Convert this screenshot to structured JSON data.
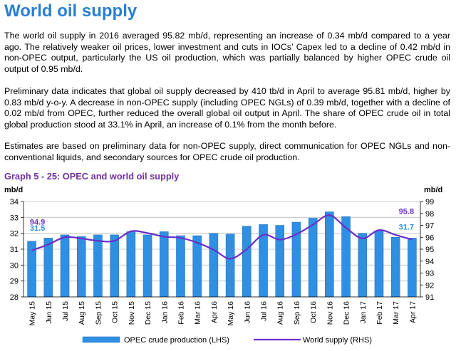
{
  "title": "World oil supply",
  "paragraphs": [
    "The world oil supply in 2016 averaged 95.82 mb/d, representing an increase of 0.34 mb/d compared to a year ago. The relatively weaker oil prices, lower investment and cuts in IOCs’ Capex led to a decline of 0.42 mb/d in non-OPEC output, particularly the US oil production, which was partially balanced by higher OPEC crude oil output of 0.95 mb/d.",
    "Preliminary data indicates that global oil supply decreased by 410 tb/d in April to average 95.81 mb/d, higher by 0.83 mb/d y-o-y. A decrease in non-OPEC supply (including OPEC NGLs) of 0.39 mb/d, together with a decline of 0.02 mb/d from OPEC, further reduced the overall global oil output in April. The share of OPEC crude oil in total global production stood at 33.1% in April, an increase of 0.1% from the month before.",
    "Estimates are based on preliminary data for non-OPEC supply, direct communication for OPEC NGLs and non-conventional liquids, and secondary sources for OPEC crude oil production."
  ],
  "chart_data": {
    "type": "bar",
    "title": "Graph 5 - 25: OPEC and world oil supply",
    "ylabel_left": "mb/d",
    "ylabel_right": "mb/d",
    "categories": [
      "May 15",
      "Jun 15",
      "Jul 15",
      "Aug 15",
      "Sep 15",
      "Oct 15",
      "Nov 15",
      "Dec 15",
      "Jan 16",
      "Feb 16",
      "Mar 16",
      "Apr 16",
      "May 16",
      "Jun 16",
      "Jul 16",
      "Aug 16",
      "Sep 16",
      "Oct 16",
      "Nov 16",
      "Dec 16",
      "Jan 17",
      "Feb 17",
      "Mar 17",
      "Apr 17"
    ],
    "ylim_left": [
      28,
      34
    ],
    "yticks_left": [
      28,
      29,
      30,
      31,
      32,
      33,
      34
    ],
    "ylim_right": [
      91,
      99
    ],
    "yticks_right": [
      91,
      92,
      93,
      94,
      95,
      96,
      97,
      98,
      99
    ],
    "series": [
      {
        "name": "OPEC crude production (LHS)",
        "axis": "left",
        "kind": "bar",
        "color": "#2f8fe3",
        "values": [
          31.5,
          31.7,
          31.9,
          31.8,
          31.9,
          31.9,
          32.1,
          31.9,
          32.1,
          31.85,
          31.85,
          32.0,
          31.95,
          32.45,
          32.55,
          32.5,
          32.7,
          32.95,
          33.35,
          33.05,
          32.0,
          32.15,
          31.75,
          31.7
        ]
      },
      {
        "name": "World supply (RHS)",
        "axis": "right",
        "kind": "line",
        "color": "#6a2fc8",
        "values": [
          94.9,
          95.4,
          96.0,
          95.9,
          95.7,
          95.7,
          96.5,
          96.35,
          96.05,
          95.95,
          95.55,
          94.95,
          94.2,
          95.0,
          96.2,
          95.8,
          96.25,
          97.05,
          97.85,
          96.8,
          95.9,
          96.6,
          96.2,
          95.8
        ]
      }
    ],
    "annotations": [
      {
        "text": "94.9",
        "color": "#6a2fc8"
      },
      {
        "text": "31.5",
        "color": "#2f8fe3"
      },
      {
        "text": "95.8",
        "color": "#6a2fc8"
      },
      {
        "text": "31.7",
        "color": "#2f8fe3"
      }
    ],
    "grid": true,
    "legend": "bottom"
  }
}
